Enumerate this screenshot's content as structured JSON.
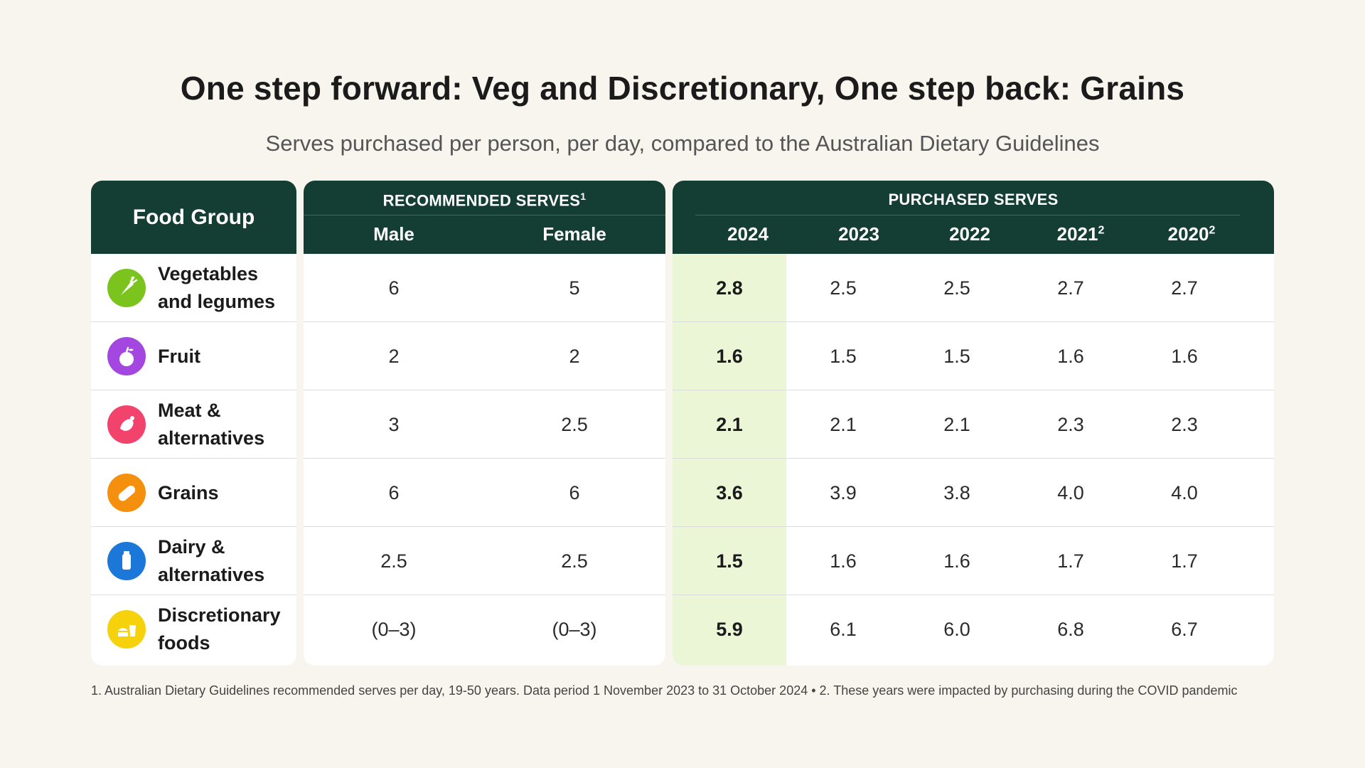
{
  "title": "One step forward: Veg and Discretionary, One step back: Grains",
  "subtitle": "Serves purchased per person, per day, compared to the Australian Dietary Guidelines",
  "colors": {
    "header_bg": "#143d34",
    "highlight_col": "#eaf6d6",
    "page_bg": "#f8f4ee"
  },
  "chart_data": {
    "type": "table",
    "headers": {
      "food_group": "Food Group",
      "recommended": "RECOMMENDED SERVES",
      "recommended_sup": "1",
      "purchased": "PURCHASED SERVES",
      "male": "Male",
      "female": "Female",
      "years": [
        {
          "label": "2024",
          "sup": ""
        },
        {
          "label": "2023",
          "sup": ""
        },
        {
          "label": "2022",
          "sup": ""
        },
        {
          "label": "2021",
          "sup": "2"
        },
        {
          "label": "2020",
          "sup": "2"
        }
      ]
    },
    "rows": [
      {
        "group": "Vegetables and legumes",
        "icon": "carrot-icon",
        "color": "#7ac41d",
        "male": "6",
        "female": "5",
        "values": [
          "2.8",
          "2.5",
          "2.5",
          "2.7",
          "2.7"
        ]
      },
      {
        "group": "Fruit",
        "icon": "apple-icon",
        "color": "#a347e0",
        "male": "2",
        "female": "2",
        "values": [
          "1.6",
          "1.5",
          "1.5",
          "1.6",
          "1.6"
        ]
      },
      {
        "group": "Meat & alternatives",
        "icon": "meat-icon",
        "color": "#f2436c",
        "male": "3",
        "female": "2.5",
        "values": [
          "2.1",
          "2.1",
          "2.1",
          "2.3",
          "2.3"
        ]
      },
      {
        "group": "Grains",
        "icon": "bread-icon",
        "color": "#f5900f",
        "male": "6",
        "female": "6",
        "values": [
          "3.6",
          "3.9",
          "3.8",
          "4.0",
          "4.0"
        ]
      },
      {
        "group": "Dairy & alternatives",
        "icon": "milk-bottle-icon",
        "color": "#1c78d8",
        "male": "2.5",
        "female": "2.5",
        "values": [
          "1.5",
          "1.6",
          "1.6",
          "1.7",
          "1.7"
        ]
      },
      {
        "group": "Discretionary foods",
        "icon": "burger-fries-icon",
        "color": "#f5d20c",
        "male": "(0–3)",
        "female": "(0–3)",
        "values": [
          "5.9",
          "6.1",
          "6.0",
          "6.8",
          "6.7"
        ]
      }
    ]
  },
  "footnote": "1. Australian Dietary Guidelines recommended serves per day, 19-50 years. Data period 1 November 2023 to 31 October 2024  • 2. These years were impacted by purchasing during the COVID pandemic"
}
